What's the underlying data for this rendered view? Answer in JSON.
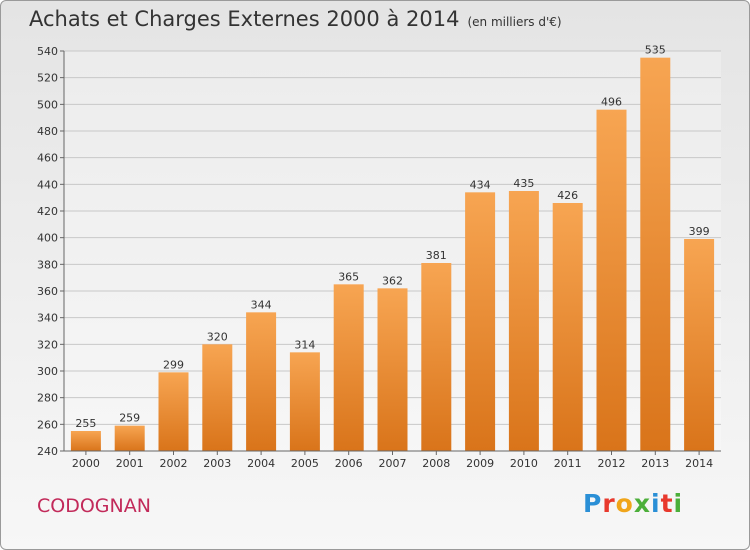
{
  "header": {
    "title": "Achats et Charges Externes 2000 à 2014",
    "unit": "(en milliers d'€)"
  },
  "footer": {
    "commune": "CODOGNAN",
    "brand_letters": [
      {
        "ch": "P",
        "color": "#2a8fd6"
      },
      {
        "ch": "r",
        "color": "#e8392d"
      },
      {
        "ch": "o",
        "color": "#f0a51a"
      },
      {
        "ch": "x",
        "color": "#4caf3a"
      },
      {
        "ch": "i",
        "color": "#2a8fd6"
      },
      {
        "ch": "t",
        "color": "#e8392d"
      },
      {
        "ch": "i",
        "color": "#4caf3a"
      }
    ]
  },
  "chart_data": {
    "type": "bar",
    "title": "Achats et Charges Externes 2000 à 2014",
    "subtitle": "(en milliers d'€)",
    "categories": [
      "2000",
      "2001",
      "2002",
      "2003",
      "2004",
      "2005",
      "2006",
      "2007",
      "2008",
      "2009",
      "2010",
      "2011",
      "2012",
      "2013",
      "2014"
    ],
    "values": [
      255,
      259,
      299,
      320,
      344,
      314,
      365,
      362,
      381,
      434,
      435,
      426,
      496,
      535,
      399
    ],
    "ylim": [
      240,
      540
    ],
    "yticks": [
      240,
      260,
      280,
      300,
      320,
      340,
      360,
      380,
      400,
      420,
      440,
      460,
      480,
      500,
      520,
      540
    ],
    "grid": true,
    "bar_color": "#f5a04a"
  }
}
